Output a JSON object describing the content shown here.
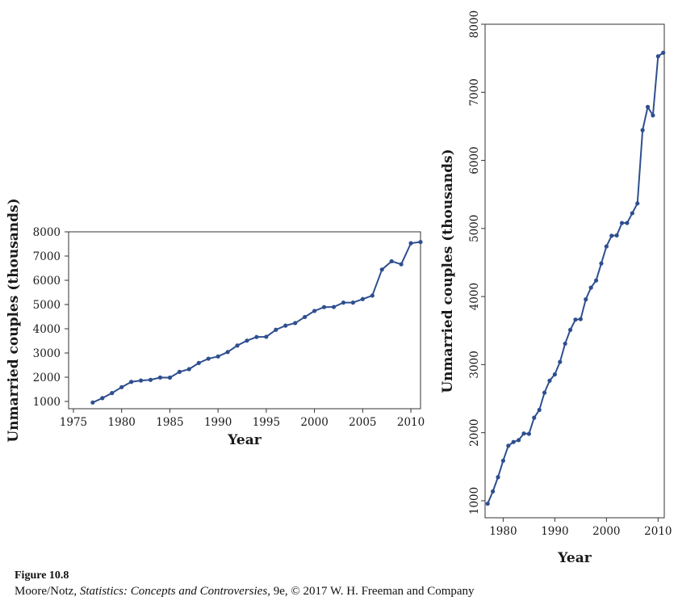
{
  "chart_data": [
    {
      "type": "line",
      "xlabel": "Year",
      "ylabel": "Unmarried couples (thousands)",
      "xlim": [
        1974.5,
        2011
      ],
      "ylim": [
        700,
        8000
      ],
      "x_ticks": [
        "1975",
        "1980",
        "1985",
        "1990",
        "1995",
        "2000",
        "2005",
        "2010"
      ],
      "y_ticks": [
        "1000",
        "2000",
        "3000",
        "4000",
        "5000",
        "6000",
        "7000",
        "8000"
      ],
      "grid": false,
      "line_color": "#2e4f8f",
      "series": [
        {
          "x": [
            1977,
            1978,
            1979,
            1980,
            1981,
            1982,
            1983,
            1984,
            1985,
            1986,
            1987,
            1988,
            1989,
            1990,
            1991,
            1992,
            1993,
            1994,
            1995,
            1996,
            1997,
            1998,
            1999,
            2000,
            2001,
            2002,
            2003,
            2004,
            2005,
            2006,
            2007,
            2008,
            2009,
            2010,
            2011
          ],
          "values": [
            957,
            1137,
            1346,
            1589,
            1808,
            1863,
            1891,
            1988,
            1983,
            2220,
            2334,
            2588,
            2764,
            2856,
            3039,
            3308,
            3510,
            3661,
            3668,
            3958,
            4130,
            4236,
            4486,
            4736,
            4893,
            4898,
            5080,
            5080,
            5224,
            5368,
            6444,
            6785,
            6661,
            7529,
            7581
          ]
        }
      ]
    },
    {
      "type": "line",
      "xlabel": "Year",
      "ylabel": "Unmarried couples (thousands)",
      "xlim": [
        1976.5,
        2011.2
      ],
      "ylim": [
        750,
        8000
      ],
      "x_ticks": [
        "1980",
        "1990",
        "2000",
        "2010"
      ],
      "y_ticks": [
        "1000",
        "2000",
        "3000",
        "4000",
        "5000",
        "6000",
        "7000",
        "8000"
      ],
      "grid": false,
      "line_color": "#2e4f8f",
      "series": [
        {
          "x": [
            1977,
            1978,
            1979,
            1980,
            1981,
            1982,
            1983,
            1984,
            1985,
            1986,
            1987,
            1988,
            1989,
            1990,
            1991,
            1992,
            1993,
            1994,
            1995,
            1996,
            1997,
            1998,
            1999,
            2000,
            2001,
            2002,
            2003,
            2004,
            2005,
            2006,
            2007,
            2008,
            2009,
            2010,
            2011
          ],
          "values": [
            957,
            1137,
            1346,
            1589,
            1808,
            1863,
            1891,
            1988,
            1983,
            2220,
            2334,
            2588,
            2764,
            2856,
            3039,
            3308,
            3510,
            3661,
            3668,
            3958,
            4130,
            4236,
            4486,
            4736,
            4893,
            4898,
            5080,
            5080,
            5224,
            5368,
            6444,
            6785,
            6661,
            7529,
            7581
          ]
        }
      ]
    }
  ],
  "caption": {
    "title": "Figure 10.8",
    "credit_author": "Moore/Notz, ",
    "credit_book": "Statistics: Concepts and Controversies",
    "credit_rest": ", 9e, © 2017 W. H. Freeman and Company"
  }
}
